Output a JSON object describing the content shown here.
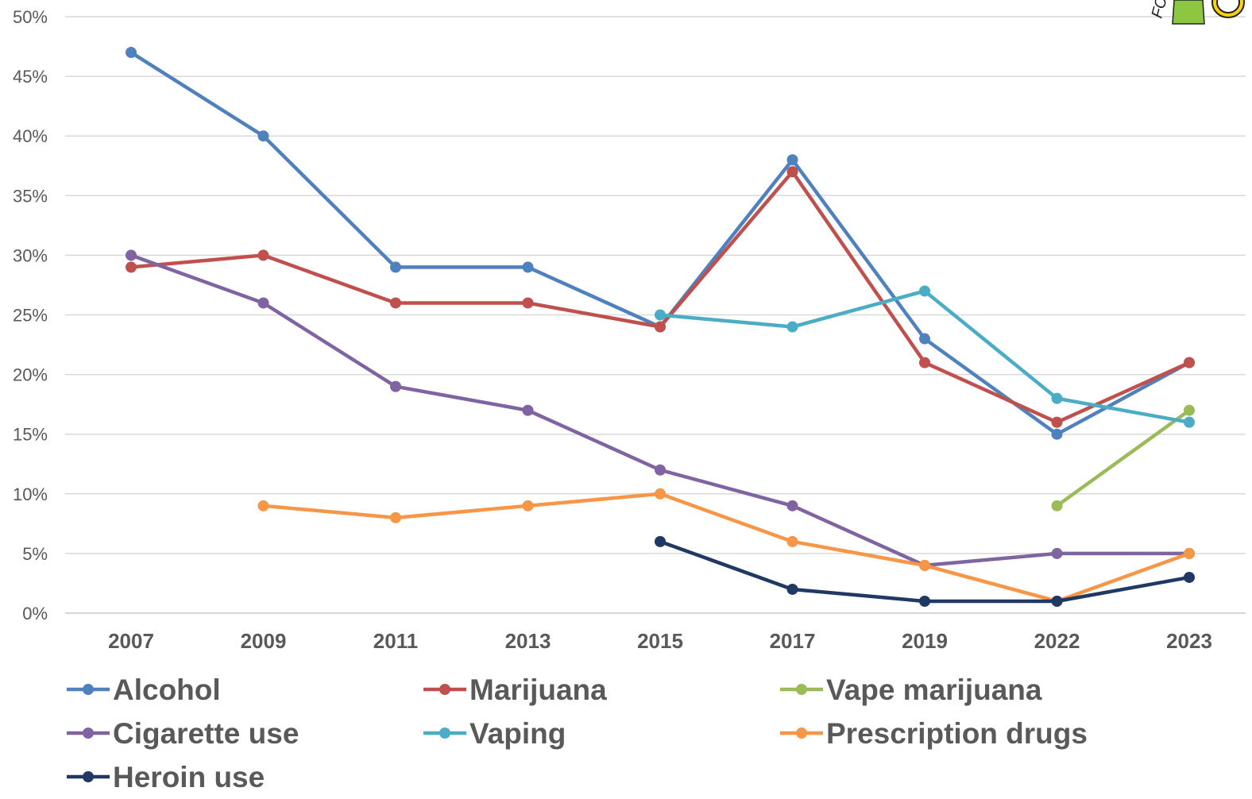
{
  "chart_data": {
    "type": "line",
    "categories": [
      "2007",
      "2009",
      "2011",
      "2013",
      "2015",
      "2017",
      "2019",
      "2022",
      "2023"
    ],
    "ylim": [
      0,
      50
    ],
    "y_ticks": [
      {
        "value": 0,
        "label": "0%"
      },
      {
        "value": 5,
        "label": "5%"
      },
      {
        "value": 10,
        "label": "10%"
      },
      {
        "value": 15,
        "label": "15%"
      },
      {
        "value": 20,
        "label": "20%"
      },
      {
        "value": 25,
        "label": "25%"
      },
      {
        "value": 30,
        "label": "30%"
      },
      {
        "value": 35,
        "label": "35%"
      },
      {
        "value": 40,
        "label": "40%"
      },
      {
        "value": 45,
        "label": "45%"
      },
      {
        "value": 50,
        "label": "50%"
      }
    ],
    "grid": "horizontal",
    "legend_position": "bottom",
    "series": [
      {
        "name": "Alcohol",
        "color": "#4F81BD",
        "values": [
          47,
          40,
          29,
          29,
          24,
          38,
          23,
          15,
          21
        ]
      },
      {
        "name": "Marijuana",
        "color": "#C0504D",
        "values": [
          29,
          30,
          26,
          26,
          24,
          37,
          21,
          16,
          21
        ]
      },
      {
        "name": "Vape marijuana",
        "color": "#9BBB59",
        "values": [
          null,
          null,
          null,
          null,
          null,
          null,
          null,
          9,
          17
        ]
      },
      {
        "name": "Cigarette use",
        "color": "#8064A2",
        "values": [
          30,
          26,
          19,
          17,
          12,
          9,
          4,
          5,
          5
        ]
      },
      {
        "name": "Vaping",
        "color": "#4BACC6",
        "values": [
          null,
          null,
          null,
          null,
          25,
          24,
          27,
          18,
          16
        ]
      },
      {
        "name": "Prescription drugs",
        "color": "#F79646",
        "values": [
          null,
          9,
          8,
          9,
          10,
          6,
          4,
          1,
          5
        ]
      },
      {
        "name": "Heroin use",
        "color": "#1F3864",
        "values": [
          null,
          null,
          null,
          null,
          6,
          2,
          1,
          1,
          3
        ]
      }
    ]
  },
  "logo": {
    "text": "FC",
    "colors": [
      "#8DC63F",
      "#FFD200"
    ]
  }
}
